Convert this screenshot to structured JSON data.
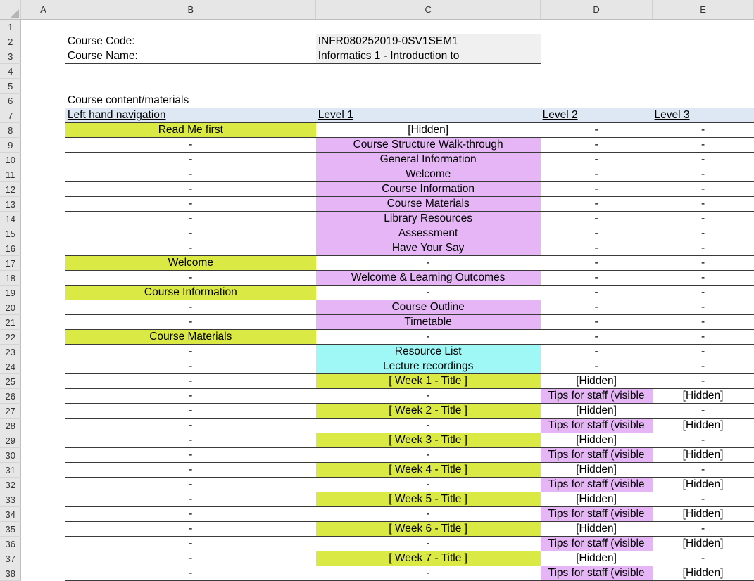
{
  "columns": [
    "A",
    "B",
    "C",
    "D",
    "E"
  ],
  "fills": {
    "y": "#dbe944",
    "p": "#e5b5f5",
    "c": "#9ff8f6",
    "h": "#dde8f4",
    "g": "#f0f0f0"
  },
  "rows": [
    {
      "n": "1",
      "cells": []
    },
    {
      "n": "2",
      "cells": [
        {
          "t": "Course Code:",
          "a": "l"
        },
        {
          "t": "INFR080252019-0SV1SEM1",
          "a": "l",
          "f": "g"
        }
      ]
    },
    {
      "n": "3",
      "cells": [
        {
          "t": "Course Name:",
          "a": "l"
        },
        {
          "t": "Informatics 1 - Introduction to",
          "a": "l",
          "f": "g"
        }
      ]
    },
    {
      "n": "4",
      "cells": []
    },
    {
      "n": "5",
      "cells": []
    },
    {
      "n": "6",
      "cells": [
        {
          "t": "Course content/materials",
          "a": "l"
        }
      ]
    },
    {
      "n": "7",
      "cells": [
        {
          "t": "Left hand navigation",
          "a": "l",
          "f": "h",
          "u": 1
        },
        {
          "t": "Level 1",
          "a": "l",
          "f": "h",
          "u": 1
        },
        {
          "t": "Level 2",
          "a": "l",
          "f": "h",
          "u": 1
        },
        {
          "t": "Level 3",
          "a": "l",
          "f": "h",
          "u": 1
        }
      ]
    },
    {
      "n": "8",
      "cells": [
        {
          "t": "Read Me first",
          "f": "y"
        },
        {
          "t": "[Hidden]"
        },
        {
          "t": "-"
        },
        {
          "t": "-"
        }
      ]
    },
    {
      "n": "9",
      "cells": [
        {
          "t": "-"
        },
        {
          "t": "Course Structure Walk-through",
          "f": "p"
        },
        {
          "t": "-"
        },
        {
          "t": "-"
        }
      ]
    },
    {
      "n": "10",
      "cells": [
        {
          "t": "-"
        },
        {
          "t": "General Information",
          "f": "p"
        },
        {
          "t": "-"
        },
        {
          "t": "-"
        }
      ]
    },
    {
      "n": "11",
      "cells": [
        {
          "t": "-"
        },
        {
          "t": "Welcome",
          "f": "p"
        },
        {
          "t": "-"
        },
        {
          "t": "-"
        }
      ]
    },
    {
      "n": "12",
      "cells": [
        {
          "t": "-"
        },
        {
          "t": "Course Information",
          "f": "p"
        },
        {
          "t": "-"
        },
        {
          "t": "-"
        }
      ]
    },
    {
      "n": "13",
      "cells": [
        {
          "t": "-"
        },
        {
          "t": "Course Materials",
          "f": "p"
        },
        {
          "t": "-"
        },
        {
          "t": "-"
        }
      ]
    },
    {
      "n": "14",
      "cells": [
        {
          "t": "-"
        },
        {
          "t": "Library Resources",
          "f": "p"
        },
        {
          "t": "-"
        },
        {
          "t": "-"
        }
      ]
    },
    {
      "n": "15",
      "cells": [
        {
          "t": "-"
        },
        {
          "t": "Assessment",
          "f": "p"
        },
        {
          "t": "-"
        },
        {
          "t": "-"
        }
      ]
    },
    {
      "n": "16",
      "cells": [
        {
          "t": "-"
        },
        {
          "t": "Have Your Say",
          "f": "p"
        },
        {
          "t": "-"
        },
        {
          "t": "-"
        }
      ]
    },
    {
      "n": "17",
      "cells": [
        {
          "t": "Welcome",
          "f": "y"
        },
        {
          "t": "-"
        },
        {
          "t": "-"
        },
        {
          "t": "-"
        }
      ]
    },
    {
      "n": "18",
      "cells": [
        {
          "t": "-"
        },
        {
          "t": "Welcome & Learning Outcomes",
          "f": "p"
        },
        {
          "t": "-"
        },
        {
          "t": "-"
        }
      ]
    },
    {
      "n": "19",
      "cells": [
        {
          "t": "Course Information",
          "f": "y"
        },
        {
          "t": "-"
        },
        {
          "t": "-"
        },
        {
          "t": "-"
        }
      ]
    },
    {
      "n": "20",
      "cells": [
        {
          "t": "-"
        },
        {
          "t": "Course Outline",
          "f": "p"
        },
        {
          "t": "-"
        },
        {
          "t": "-"
        }
      ]
    },
    {
      "n": "21",
      "cells": [
        {
          "t": "-"
        },
        {
          "t": "Timetable",
          "f": "p"
        },
        {
          "t": "-"
        },
        {
          "t": "-"
        }
      ]
    },
    {
      "n": "22",
      "cells": [
        {
          "t": "Course Materials",
          "f": "y"
        },
        {
          "t": "-"
        },
        {
          "t": "-"
        },
        {
          "t": "-"
        }
      ]
    },
    {
      "n": "23",
      "cells": [
        {
          "t": "-"
        },
        {
          "t": "Resource List",
          "f": "c"
        },
        {
          "t": "-"
        },
        {
          "t": "-"
        }
      ]
    },
    {
      "n": "24",
      "cells": [
        {
          "t": "-"
        },
        {
          "t": "Lecture recordings",
          "f": "c"
        },
        {
          "t": "-"
        },
        {
          "t": "-"
        }
      ]
    },
    {
      "n": "25",
      "cells": [
        {
          "t": "-"
        },
        {
          "t": "[ Week 1 - Title ]",
          "f": "y"
        },
        {
          "t": "[Hidden]"
        },
        {
          "t": "-"
        }
      ]
    },
    {
      "n": "26",
      "cells": [
        {
          "t": "-"
        },
        {
          "t": "-"
        },
        {
          "t": "Tips for staff (visible",
          "f": "p"
        },
        {
          "t": "[Hidden]"
        }
      ]
    },
    {
      "n": "27",
      "cells": [
        {
          "t": "-"
        },
        {
          "t": "[ Week 2 - Title ]",
          "f": "y"
        },
        {
          "t": "[Hidden]"
        },
        {
          "t": "-"
        }
      ]
    },
    {
      "n": "28",
      "cells": [
        {
          "t": "-"
        },
        {
          "t": "-"
        },
        {
          "t": "Tips for staff (visible",
          "f": "p"
        },
        {
          "t": "[Hidden]"
        }
      ]
    },
    {
      "n": "29",
      "cells": [
        {
          "t": "-"
        },
        {
          "t": "[ Week 3 - Title ]",
          "f": "y"
        },
        {
          "t": "[Hidden]"
        },
        {
          "t": "-"
        }
      ]
    },
    {
      "n": "30",
      "cells": [
        {
          "t": "-"
        },
        {
          "t": "-"
        },
        {
          "t": "Tips for staff (visible",
          "f": "p"
        },
        {
          "t": "[Hidden]"
        }
      ]
    },
    {
      "n": "31",
      "cells": [
        {
          "t": "-"
        },
        {
          "t": "[ Week 4 - Title ]",
          "f": "y"
        },
        {
          "t": "[Hidden]"
        },
        {
          "t": "-"
        }
      ]
    },
    {
      "n": "32",
      "cells": [
        {
          "t": "-"
        },
        {
          "t": "-"
        },
        {
          "t": "Tips for staff (visible",
          "f": "p"
        },
        {
          "t": "[Hidden]"
        }
      ]
    },
    {
      "n": "33",
      "cells": [
        {
          "t": "-"
        },
        {
          "t": "[ Week 5 - Title ]",
          "f": "y"
        },
        {
          "t": "[Hidden]"
        },
        {
          "t": "-"
        }
      ]
    },
    {
      "n": "34",
      "cells": [
        {
          "t": "-"
        },
        {
          "t": "-"
        },
        {
          "t": "Tips for staff (visible",
          "f": "p"
        },
        {
          "t": "[Hidden]"
        }
      ]
    },
    {
      "n": "35",
      "cells": [
        {
          "t": "-"
        },
        {
          "t": "[ Week 6 - Title ]",
          "f": "y"
        },
        {
          "t": "[Hidden]"
        },
        {
          "t": "-"
        }
      ]
    },
    {
      "n": "36",
      "cells": [
        {
          "t": "-"
        },
        {
          "t": "-"
        },
        {
          "t": "Tips for staff (visible",
          "f": "p"
        },
        {
          "t": "[Hidden]"
        }
      ]
    },
    {
      "n": "37",
      "cells": [
        {
          "t": "-"
        },
        {
          "t": "[ Week 7 - Title ]",
          "f": "y"
        },
        {
          "t": "[Hidden]"
        },
        {
          "t": "-"
        }
      ]
    },
    {
      "n": "38",
      "cells": [
        {
          "t": "-"
        },
        {
          "t": "-"
        },
        {
          "t": "Tips for staff (visible",
          "f": "p"
        },
        {
          "t": "[Hidden]"
        }
      ]
    }
  ]
}
